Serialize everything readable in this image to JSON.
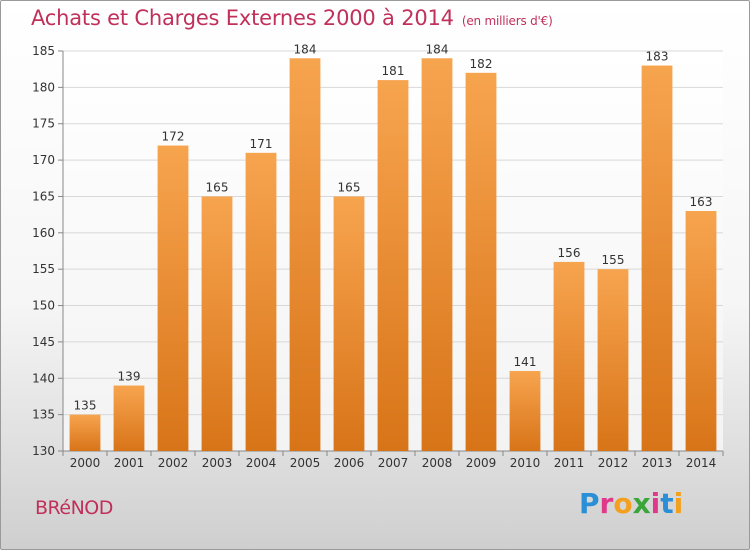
{
  "title": "Achats et Charges Externes 2000 à 2014",
  "unit": "(en milliers d'€)",
  "commune": "BRéNOD",
  "logo": {
    "text": "Proxiti",
    "letters": [
      {
        "ch": "P",
        "color": "#2a8fd6"
      },
      {
        "ch": "r",
        "color": "#e0398b"
      },
      {
        "ch": "o",
        "color": "#f2a01e"
      },
      {
        "ch": "x",
        "color": "#3aa63a"
      },
      {
        "ch": "i",
        "color": "#e0398b"
      },
      {
        "ch": "t",
        "color": "#2a8fd6"
      },
      {
        "ch": "i",
        "color": "#f2a01e"
      }
    ]
  },
  "colors": {
    "bar_top": "#f7a44f",
    "bar_bottom": "#d87418",
    "title": "#c0305a",
    "grid": "#d8d8d8"
  },
  "chart_data": {
    "type": "bar",
    "categories": [
      "2000",
      "2001",
      "2002",
      "2003",
      "2004",
      "2005",
      "2006",
      "2007",
      "2008",
      "2009",
      "2010",
      "2011",
      "2012",
      "2013",
      "2014"
    ],
    "values": [
      135,
      139,
      172,
      165,
      171,
      184,
      165,
      181,
      184,
      182,
      141,
      156,
      155,
      183,
      163
    ],
    "yticks": [
      130,
      135,
      140,
      145,
      150,
      155,
      160,
      165,
      170,
      175,
      180,
      185
    ],
    "ylim": [
      130,
      185
    ],
    "grid": true
  }
}
